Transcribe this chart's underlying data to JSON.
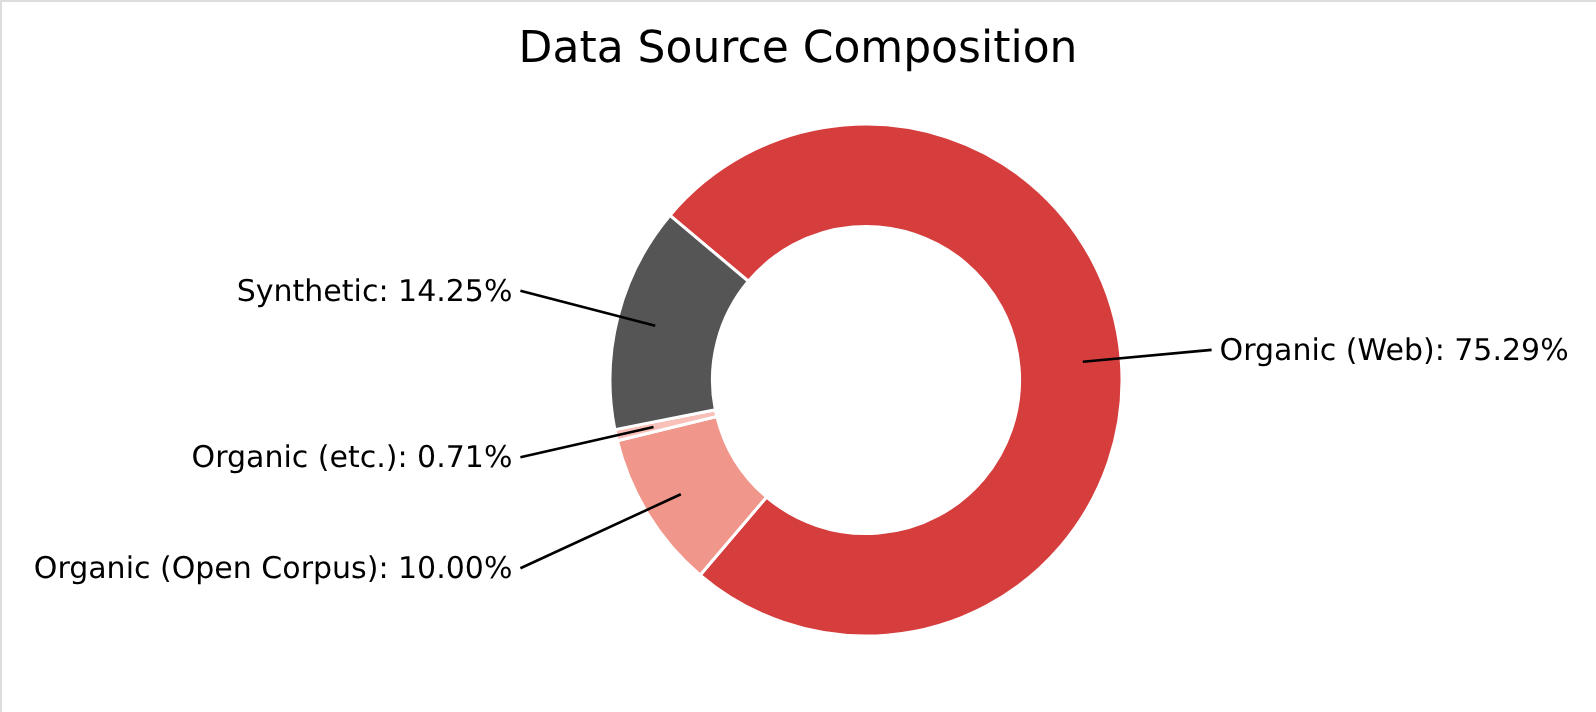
{
  "chart_data": {
    "type": "donut",
    "title": "Data Source Composition",
    "categories": [
      "Organic (Web)",
      "Organic (Open Corpus)",
      "Organic (etc.)",
      "Synthetic"
    ],
    "values": [
      75.29,
      10.0,
      0.71,
      14.25
    ],
    "value_labels": [
      "75.29%",
      "10.00%",
      "0.71%",
      "14.25%"
    ],
    "colors": [
      "#d63e3e",
      "#f1968a",
      "#f8c0b8",
      "#555555"
    ],
    "legend": false
  }
}
